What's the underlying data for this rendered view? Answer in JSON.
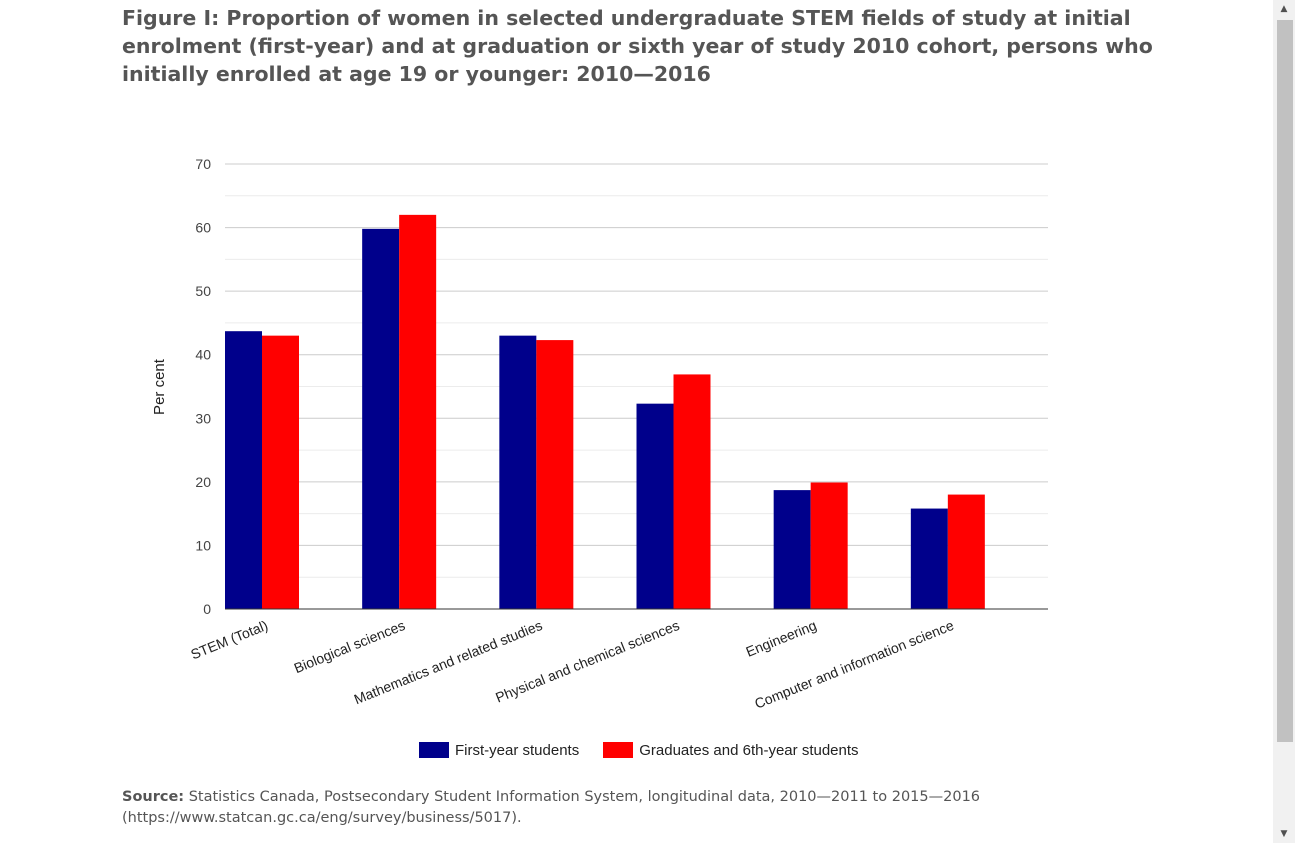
{
  "figure": {
    "label": "Figure I:",
    "title": "Proportion of women in selected undergraduate STEM fields of study at initial enrolment (first-year) and at graduation or sixth year of study 2010 cohort, persons who initially enrolled at age 19 or younger: 2010—2016"
  },
  "chart_data": {
    "type": "bar",
    "categories": [
      "STEM (Total)",
      "Biological sciences",
      "Mathematics and related studies",
      "Physical and chemical sciences",
      "Engineering",
      "Computer and information science"
    ],
    "series": [
      {
        "name": "First-year students",
        "color": "#00008b",
        "values": [
          43.7,
          59.8,
          43.0,
          32.3,
          18.7,
          15.8
        ]
      },
      {
        "name": "Graduates and 6th-year students",
        "color": "#ff0000",
        "values": [
          43.0,
          62.0,
          42.3,
          36.9,
          19.9,
          18.0
        ]
      }
    ],
    "ylabel": "Per cent",
    "xlabel": "",
    "ylim": [
      0,
      70
    ],
    "yticks": [
      0,
      10,
      20,
      30,
      40,
      50,
      60,
      70
    ],
    "grid": true,
    "legend_position": "bottom"
  },
  "source": {
    "label": "Source:",
    "text": "Statistics Canada, Postsecondary Student Information System, longitudinal data, 2010—2011 to 2015—2016 (https://www.statcan.gc.ca/eng/survey/business/5017)."
  },
  "scrollbar": {
    "up_arrow": "▲",
    "down_arrow": "▼"
  }
}
